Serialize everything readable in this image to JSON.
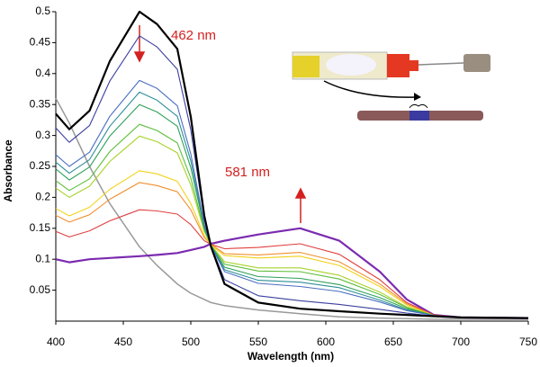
{
  "chart_data": {
    "type": "line",
    "x_label": "Wavelength (nm)",
    "y_label": "Absorbance",
    "annotations": [
      "462 nm",
      "581 nm"
    ],
    "x": [
      400,
      410,
      425,
      440,
      462,
      475,
      490,
      500,
      510,
      515,
      525,
      550,
      581,
      610,
      640,
      660,
      680,
      700,
      750
    ],
    "xlim": [
      400,
      750
    ],
    "xticks": [
      400,
      450,
      500,
      550,
      600,
      650,
      700,
      750
    ],
    "ylim": [
      0,
      0.5
    ],
    "yticks": [
      0.05,
      0.1,
      0.15,
      0.2,
      0.25,
      0.3,
      0.35,
      0.4,
      0.45,
      0.5
    ],
    "series": [
      {
        "color": "#999999",
        "values": [
          0.36,
          0.32,
          0.25,
          0.19,
          0.12,
          0.09,
          0.06,
          0.045,
          0.035,
          0.03,
          0.025,
          0.018,
          0.012,
          0.007,
          0.005,
          0.004,
          0.003,
          0.003,
          0.003
        ]
      },
      {
        "color": "#7b2bb0",
        "values": [
          0.1,
          0.095,
          0.1,
          0.102,
          0.105,
          0.107,
          0.11,
          0.115,
          0.12,
          0.125,
          0.13,
          0.14,
          0.15,
          0.13,
          0.08,
          0.035,
          0.01,
          0.006,
          0.005
        ]
      },
      {
        "color": "#e04040",
        "values": [
          0.145,
          0.136,
          0.146,
          0.162,
          0.18,
          0.178,
          0.173,
          0.156,
          0.13,
          0.124,
          0.117,
          0.119,
          0.125,
          0.108,
          0.067,
          0.03,
          0.01,
          0.006,
          0.005
        ]
      },
      {
        "color": "#f09030",
        "values": [
          0.171,
          0.16,
          0.172,
          0.197,
          0.224,
          0.219,
          0.209,
          0.18,
          0.135,
          0.124,
          0.109,
          0.107,
          0.111,
          0.096,
          0.06,
          0.028,
          0.009,
          0.006,
          0.005
        ]
      },
      {
        "color": "#f2d21a",
        "values": [
          0.182,
          0.17,
          0.184,
          0.213,
          0.243,
          0.238,
          0.226,
          0.19,
          0.138,
          0.123,
          0.106,
          0.102,
          0.105,
          0.09,
          0.056,
          0.026,
          0.009,
          0.006,
          0.005
        ]
      },
      {
        "color": "#a8d22a",
        "values": [
          0.215,
          0.2,
          0.218,
          0.258,
          0.299,
          0.29,
          0.272,
          0.22,
          0.145,
          0.123,
          0.096,
          0.086,
          0.086,
          0.074,
          0.047,
          0.023,
          0.009,
          0.006,
          0.005
        ]
      },
      {
        "color": "#5cbf3a",
        "values": [
          0.227,
          0.211,
          0.23,
          0.274,
          0.318,
          0.308,
          0.288,
          0.231,
          0.147,
          0.122,
          0.092,
          0.081,
          0.08,
          0.068,
          0.043,
          0.022,
          0.009,
          0.006,
          0.005
        ]
      },
      {
        "color": "#2ea05a",
        "values": [
          0.246,
          0.228,
          0.249,
          0.299,
          0.35,
          0.338,
          0.315,
          0.248,
          0.151,
          0.122,
          0.087,
          0.072,
          0.069,
          0.059,
          0.038,
          0.02,
          0.009,
          0.006,
          0.005
        ]
      },
      {
        "color": "#2e8f9a",
        "values": [
          0.257,
          0.239,
          0.261,
          0.315,
          0.37,
          0.357,
          0.331,
          0.259,
          0.154,
          0.122,
          0.083,
          0.066,
          0.063,
          0.054,
          0.034,
          0.018,
          0.009,
          0.006,
          0.005
        ]
      },
      {
        "color": "#4a6fc0",
        "values": [
          0.269,
          0.25,
          0.273,
          0.331,
          0.389,
          0.376,
          0.348,
          0.27,
          0.156,
          0.121,
          0.08,
          0.061,
          0.056,
          0.048,
          0.031,
          0.017,
          0.009,
          0.006,
          0.005
        ]
      },
      {
        "color": "#3a3f9e",
        "values": [
          0.312,
          0.289,
          0.316,
          0.388,
          0.461,
          0.443,
          0.407,
          0.309,
          0.165,
          0.121,
          0.067,
          0.041,
          0.033,
          0.027,
          0.019,
          0.013,
          0.008,
          0.006,
          0.005
        ]
      },
      {
        "color": "#000000",
        "values": [
          0.335,
          0.31,
          0.34,
          0.42,
          0.5,
          0.48,
          0.44,
          0.33,
          0.17,
          0.12,
          0.06,
          0.03,
          0.02,
          0.016,
          0.012,
          0.01,
          0.008,
          0.006,
          0.005
        ]
      }
    ]
  }
}
